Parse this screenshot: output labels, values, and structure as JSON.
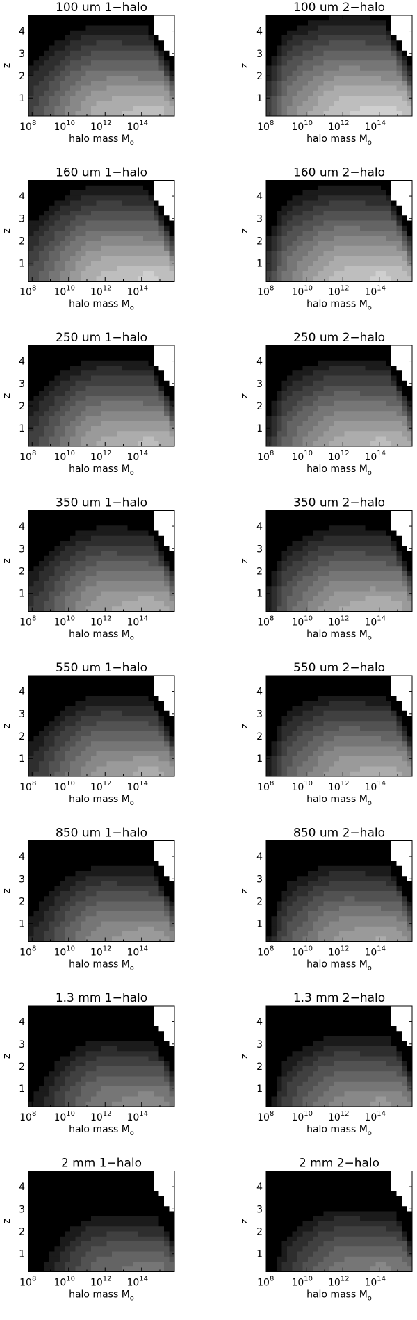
{
  "figure": {
    "shared_x_label": "halo mass M",
    "shared_x_label_subscript": "o",
    "shared_y_label": "z",
    "x_ticks": [
      {
        "base": "10",
        "exp": "8",
        "value": 8
      },
      {
        "base": "10",
        "exp": "10",
        "value": 10
      },
      {
        "base": "10",
        "exp": "12",
        "value": 12
      },
      {
        "base": "10",
        "exp": "14",
        "value": 14
      }
    ],
    "y_ticks": [
      "1",
      "2",
      "3",
      "4"
    ],
    "y_tick_values": [
      1,
      2,
      3,
      4
    ]
  },
  "colors": {
    "levels": [
      "#000000",
      "#1b1b1b",
      "#2e2e2e",
      "#404040",
      "#525252",
      "#646464",
      "#767676",
      "#888888",
      "#9a9a9a",
      "#acacac",
      "#bebebe",
      "#cfcfcf",
      "#dedede",
      "#ececec"
    ],
    "background": "#ffffff"
  },
  "chart_data": [
    {
      "type": "heatmap",
      "title": "100 um 1−halo",
      "xlabel": "halo mass M",
      "ylabel": "z",
      "xlim": [
        7.8,
        15.8
      ],
      "ylim": [
        0.2,
        4.7
      ],
      "x_scale": "log10",
      "grid": false,
      "levels": [
        0,
        1,
        2,
        3,
        4,
        5,
        6,
        7,
        8,
        9,
        10,
        11,
        12,
        13
      ]
    },
    {
      "type": "heatmap",
      "title": "100 um 2−halo",
      "xlabel": "halo mass M",
      "ylabel": "z",
      "xlim": [
        7.8,
        15.8
      ],
      "ylim": [
        0.2,
        4.7
      ],
      "x_scale": "log10",
      "grid": false,
      "levels": [
        0,
        1,
        2,
        3,
        4,
        5,
        6,
        7,
        8,
        9,
        10,
        11,
        12,
        13
      ]
    },
    {
      "type": "heatmap",
      "title": "160 um 1−halo",
      "xlabel": "halo mass M",
      "ylabel": "z",
      "xlim": [
        7.8,
        15.8
      ],
      "ylim": [
        0.2,
        4.7
      ],
      "x_scale": "log10",
      "grid": false,
      "levels": [
        0,
        1,
        2,
        3,
        4,
        5,
        6,
        7,
        8,
        9,
        10,
        11,
        12,
        13
      ]
    },
    {
      "type": "heatmap",
      "title": "160 um 2−halo",
      "xlabel": "halo mass M",
      "ylabel": "z",
      "xlim": [
        7.8,
        15.8
      ],
      "ylim": [
        0.2,
        4.7
      ],
      "x_scale": "log10",
      "grid": false,
      "levels": [
        0,
        1,
        2,
        3,
        4,
        5,
        6,
        7,
        8,
        9,
        10,
        11,
        12,
        13
      ]
    },
    {
      "type": "heatmap",
      "title": "250 um  1−halo",
      "xlabel": "halo mass M",
      "ylabel": "z",
      "xlim": [
        7.8,
        15.8
      ],
      "ylim": [
        0.2,
        4.7
      ],
      "x_scale": "log10",
      "grid": false,
      "levels": [
        0,
        1,
        2,
        3,
        4,
        5,
        6,
        7,
        8,
        9,
        10,
        11,
        12,
        13
      ]
    },
    {
      "type": "heatmap",
      "title": "250 um  2−halo",
      "xlabel": "halo mass M",
      "ylabel": "z",
      "xlim": [
        7.8,
        15.8
      ],
      "ylim": [
        0.2,
        4.7
      ],
      "x_scale": "log10",
      "grid": false,
      "levels": [
        0,
        1,
        2,
        3,
        4,
        5,
        6,
        7,
        8,
        9,
        10,
        11,
        12,
        13
      ]
    },
    {
      "type": "heatmap",
      "title": "350 um 1−halo",
      "xlabel": "halo mass M",
      "ylabel": "z",
      "xlim": [
        7.8,
        15.8
      ],
      "ylim": [
        0.2,
        4.7
      ],
      "x_scale": "log10",
      "grid": false,
      "levels": [
        0,
        1,
        2,
        3,
        4,
        5,
        6,
        7,
        8,
        9,
        10,
        11,
        12,
        13
      ]
    },
    {
      "type": "heatmap",
      "title": "350 um 2−halo",
      "xlabel": "halo mass M",
      "ylabel": "z",
      "xlim": [
        7.8,
        15.8
      ],
      "ylim": [
        0.2,
        4.7
      ],
      "x_scale": "log10",
      "grid": false,
      "levels": [
        0,
        1,
        2,
        3,
        4,
        5,
        6,
        7,
        8,
        9,
        10,
        11,
        12,
        13
      ]
    },
    {
      "type": "heatmap",
      "title": "550 um 1−halo",
      "xlabel": "halo mass M",
      "ylabel": "z",
      "xlim": [
        7.8,
        15.8
      ],
      "ylim": [
        0.2,
        4.7
      ],
      "x_scale": "log10",
      "grid": false,
      "levels": [
        0,
        1,
        2,
        3,
        4,
        5,
        6,
        7,
        8,
        9,
        10,
        11,
        12,
        13
      ]
    },
    {
      "type": "heatmap",
      "title": "550 um 2−halo",
      "xlabel": "halo mass M",
      "ylabel": "z",
      "xlim": [
        7.8,
        15.8
      ],
      "ylim": [
        0.2,
        4.7
      ],
      "x_scale": "log10",
      "grid": false,
      "levels": [
        0,
        1,
        2,
        3,
        4,
        5,
        6,
        7,
        8,
        9,
        10,
        11,
        12,
        13
      ]
    },
    {
      "type": "heatmap",
      "title": "850 um 1−halo",
      "xlabel": "halo mass M",
      "ylabel": "z",
      "xlim": [
        7.8,
        15.8
      ],
      "ylim": [
        0.2,
        4.7
      ],
      "x_scale": "log10",
      "grid": false,
      "levels": [
        0,
        1,
        2,
        3,
        4,
        5,
        6,
        7,
        8,
        9,
        10,
        11,
        12,
        13
      ]
    },
    {
      "type": "heatmap",
      "title": "850 um 2−halo",
      "xlabel": "halo mass M",
      "ylabel": "z",
      "xlim": [
        7.8,
        15.8
      ],
      "ylim": [
        0.2,
        4.7
      ],
      "x_scale": "log10",
      "grid": false,
      "levels": [
        0,
        1,
        2,
        3,
        4,
        5,
        6,
        7,
        8,
        9,
        10,
        11,
        12,
        13
      ]
    },
    {
      "type": "heatmap",
      "title": "1.3 mm 1−halo",
      "xlabel": "halo mass M",
      "ylabel": "z",
      "xlim": [
        7.8,
        15.8
      ],
      "ylim": [
        0.2,
        4.7
      ],
      "x_scale": "log10",
      "grid": false,
      "levels": [
        0,
        1,
        2,
        3,
        4,
        5,
        6,
        7,
        8,
        9,
        10,
        11,
        12,
        13
      ]
    },
    {
      "type": "heatmap",
      "title": "1.3 mm 2−halo",
      "xlabel": "halo mass M",
      "ylabel": "z",
      "xlim": [
        7.8,
        15.8
      ],
      "ylim": [
        0.2,
        4.7
      ],
      "x_scale": "log10",
      "grid": false,
      "levels": [
        0,
        1,
        2,
        3,
        4,
        5,
        6,
        7,
        8,
        9,
        10,
        11,
        12,
        13
      ]
    },
    {
      "type": "heatmap",
      "title": "2 mm 1−halo",
      "xlabel": "halo mass M",
      "ylabel": "z",
      "xlim": [
        7.8,
        15.8
      ],
      "ylim": [
        0.2,
        4.7
      ],
      "x_scale": "log10",
      "grid": false,
      "levels": [
        0,
        1,
        2,
        3,
        4,
        5,
        6,
        7,
        8,
        9,
        10,
        11,
        12,
        13
      ]
    },
    {
      "type": "heatmap",
      "title": "2 mm 2−halo",
      "xlabel": "halo mass M",
      "ylabel": "z",
      "xlim": [
        7.8,
        15.8
      ],
      "ylim": [
        0.2,
        4.7
      ],
      "x_scale": "log10",
      "grid": false,
      "levels": [
        0,
        1,
        2,
        3,
        4,
        5,
        6,
        7,
        8,
        9,
        10,
        11,
        12,
        13
      ]
    }
  ],
  "panel_brightness": [
    2.2,
    1.2,
    1.6,
    1.6,
    2.6,
    2.6,
    3.0,
    3.0,
    3.4,
    3.2,
    4.0,
    3.8,
    5.0,
    4.6,
    6.2,
    5.6
  ]
}
